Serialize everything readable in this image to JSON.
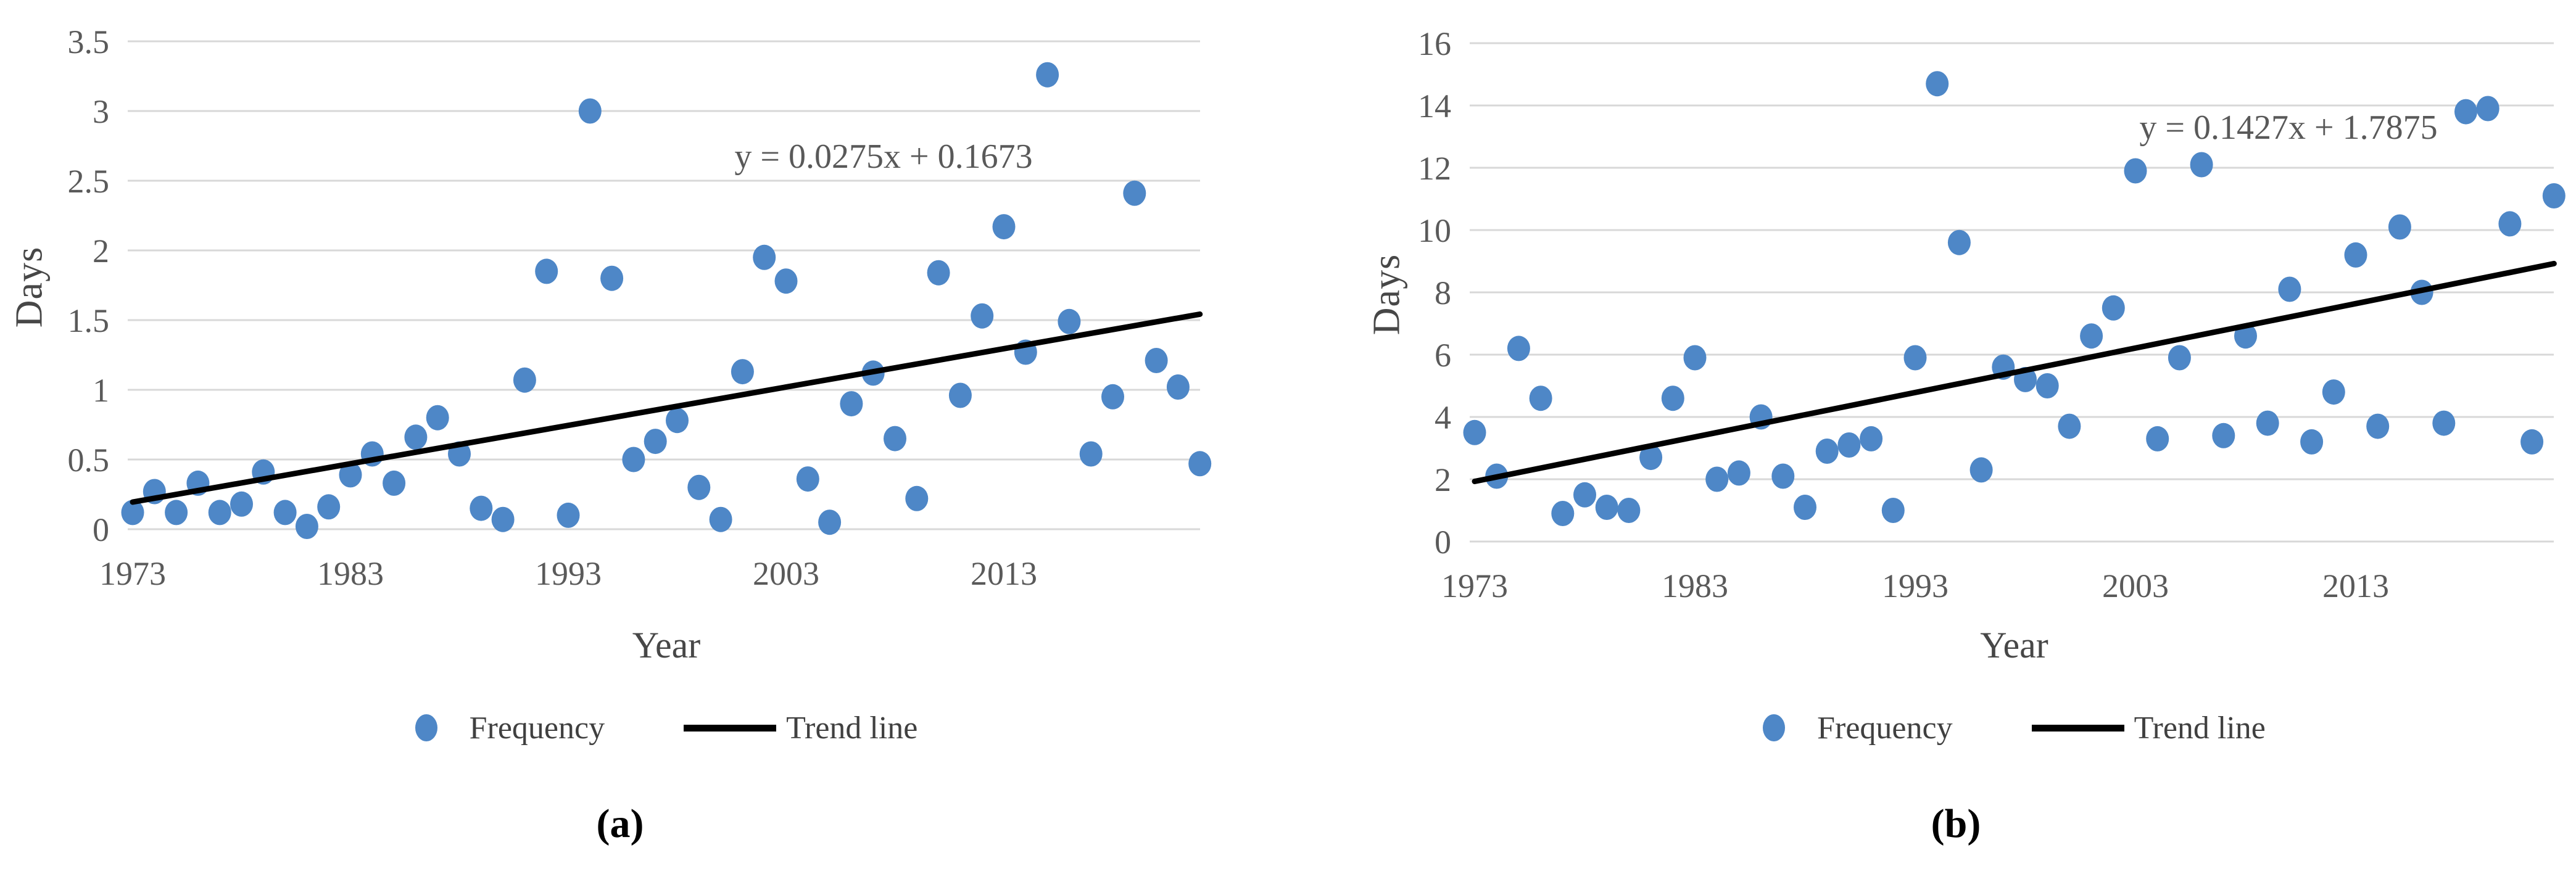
{
  "figure": {
    "background": "#ffffff"
  },
  "chart_data": [
    {
      "id": "a",
      "type": "scatter",
      "caption": "(a)",
      "equation": "y = 0.0275x + 0.1673",
      "xlabel": "Year",
      "ylabel": "Days",
      "legend": [
        {
          "label": "Frequency",
          "marker": "dot"
        },
        {
          "label": "Trend line",
          "marker": "line"
        }
      ],
      "x_axis": {
        "min": 1973,
        "max": 2022,
        "ticks": [
          1973,
          1983,
          1993,
          2003,
          2013
        ]
      },
      "y_axis": {
        "min": 0,
        "max": 3.5,
        "step": 0.5,
        "ticks": [
          "0",
          "0.5",
          "1",
          "1.5",
          "2",
          "2.5",
          "3",
          "3.5"
        ]
      },
      "grid": true,
      "legend_position": "bottom",
      "trend": {
        "slope": 0.0275,
        "intercept": 0.1673
      },
      "years": [
        1973,
        1974,
        1975,
        1976,
        1977,
        1978,
        1979,
        1980,
        1981,
        1982,
        1983,
        1984,
        1985,
        1986,
        1987,
        1988,
        1989,
        1990,
        1991,
        1992,
        1993,
        1994,
        1995,
        1996,
        1997,
        1998,
        1999,
        2000,
        2001,
        2002,
        2003,
        2004,
        2005,
        2006,
        2007,
        2008,
        2009,
        2010,
        2011,
        2012,
        2013,
        2014,
        2015,
        2016,
        2017,
        2018,
        2019,
        2020,
        2021,
        2022
      ],
      "values": [
        0.12,
        0.27,
        0.12,
        0.33,
        0.12,
        0.18,
        0.41,
        0.12,
        0.02,
        0.16,
        0.39,
        0.54,
        0.33,
        0.66,
        0.8,
        0.54,
        0.15,
        0.07,
        1.07,
        1.85,
        0.1,
        3.0,
        1.8,
        0.5,
        0.63,
        0.78,
        0.3,
        0.07,
        1.13,
        1.95,
        1.78,
        0.36,
        0.05,
        0.9,
        1.12,
        0.65,
        0.22,
        1.84,
        0.96,
        1.53,
        2.17,
        1.27,
        3.26,
        1.49,
        0.54,
        0.95,
        2.41,
        1.21,
        1.02,
        0.47
      ],
      "colors": {
        "point": "#4E87C7",
        "trend": "#000000",
        "gridline": "#D8D8D8",
        "tick_text": "#5A5A5A"
      }
    },
    {
      "id": "b",
      "type": "scatter",
      "caption": "(b)",
      "equation": "y = 0.1427x + 1.7875",
      "xlabel": "Year",
      "ylabel": "Days",
      "legend": [
        {
          "label": "Frequency",
          "marker": "dot"
        },
        {
          "label": "Trend line",
          "marker": "line"
        }
      ],
      "x_axis": {
        "min": 1973,
        "max": 2022,
        "ticks": [
          1973,
          1983,
          1993,
          2003,
          2013
        ]
      },
      "y_axis": {
        "min": 0,
        "max": 16,
        "step": 2,
        "ticks": [
          "0",
          "2",
          "4",
          "6",
          "8",
          "10",
          "12",
          "14",
          "16"
        ]
      },
      "grid": true,
      "legend_position": "bottom",
      "trend": {
        "slope": 0.1427,
        "intercept": 1.7875
      },
      "years": [
        1973,
        1974,
        1975,
        1976,
        1977,
        1978,
        1979,
        1980,
        1981,
        1982,
        1983,
        1984,
        1985,
        1986,
        1987,
        1988,
        1989,
        1990,
        1991,
        1992,
        1993,
        1994,
        1995,
        1996,
        1997,
        1998,
        1999,
        2000,
        2001,
        2002,
        2003,
        2004,
        2005,
        2006,
        2007,
        2008,
        2009,
        2010,
        2011,
        2012,
        2013,
        2014,
        2015,
        2016,
        2017,
        2018,
        2019,
        2020,
        2021,
        2022
      ],
      "values": [
        3.5,
        2.1,
        6.2,
        4.6,
        0.9,
        1.5,
        1.1,
        1.0,
        2.7,
        4.6,
        5.9,
        2.0,
        2.2,
        4.0,
        2.1,
        1.1,
        2.9,
        3.1,
        3.3,
        1.0,
        5.9,
        14.7,
        9.6,
        2.3,
        5.6,
        5.2,
        5.0,
        3.7,
        6.6,
        7.5,
        11.9,
        3.3,
        5.9,
        12.1,
        3.4,
        6.6,
        3.8,
        8.1,
        3.2,
        4.8,
        9.2,
        3.7,
        10.1,
        8.0,
        3.8,
        13.8,
        13.9,
        10.2,
        3.2,
        11.1
      ],
      "colors": {
        "point": "#4E87C7",
        "trend": "#000000",
        "gridline": "#D8D8D8",
        "tick_text": "#5A5A5A"
      }
    }
  ]
}
